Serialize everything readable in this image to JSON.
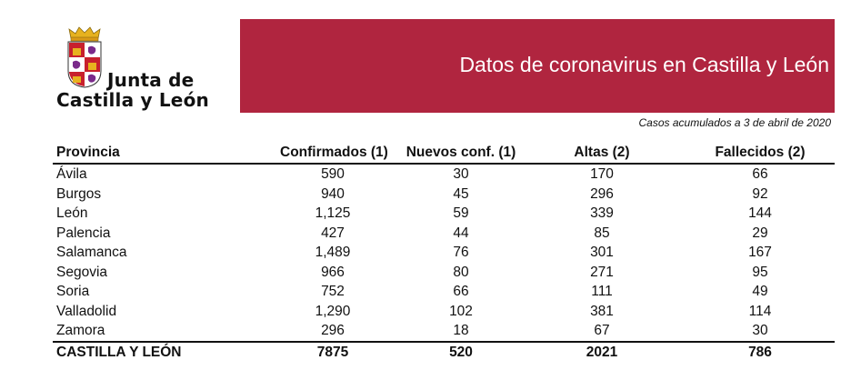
{
  "logo": {
    "line1": "Junta de",
    "line2": "Castilla y León"
  },
  "banner": {
    "title": "Datos de coronavirus en Castilla y León",
    "color": "#b0253f"
  },
  "subtitle": "Casos acumulados a 3 de abril de 2020",
  "table": {
    "headers": [
      "Provincia",
      "Confirmados (1)",
      "Nuevos conf. (1)",
      "Altas (2)",
      "Fallecidos (2)"
    ],
    "rows": [
      [
        "Ávila",
        "590",
        "30",
        "170",
        "66"
      ],
      [
        "Burgos",
        "940",
        "45",
        "296",
        "92"
      ],
      [
        "León",
        "1,125",
        "59",
        "339",
        "144"
      ],
      [
        "Palencia",
        "427",
        "44",
        "85",
        "29"
      ],
      [
        "Salamanca",
        "1,489",
        "76",
        "301",
        "167"
      ],
      [
        "Segovia",
        "966",
        "80",
        "271",
        "95"
      ],
      [
        "Soria",
        "752",
        "66",
        "111",
        "49"
      ],
      [
        "Valladolid",
        "1,290",
        "102",
        "381",
        "114"
      ],
      [
        "Zamora",
        "296",
        "18",
        "67",
        "30"
      ]
    ],
    "total": [
      "CASTILLA Y LEÓN",
      "7875",
      "520",
      "2021",
      "786"
    ]
  }
}
